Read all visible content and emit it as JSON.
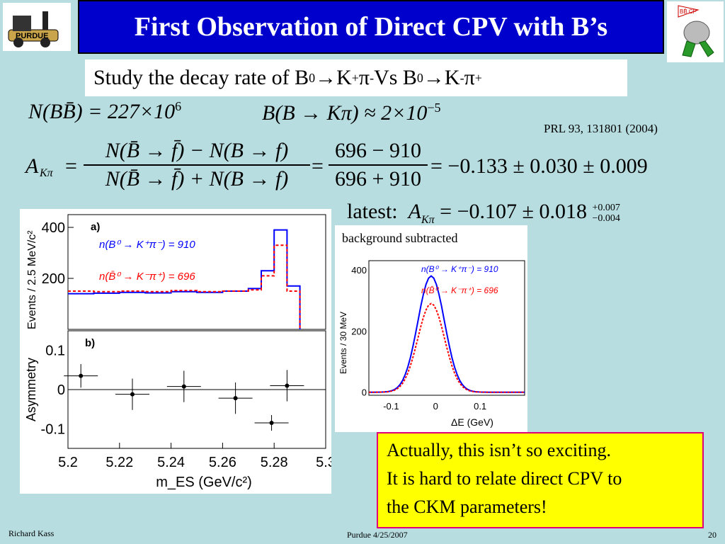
{
  "slide": {
    "title": "First Observation of Direct CPV with B’s",
    "subtitle_prefix": "Study the decay rate of B",
    "subtitle_rest_1": "→K",
    "subtitle_mid": " Vs B",
    "subtitle_rest_2": "→K",
    "sup_0": "0",
    "sup_plus": "+",
    "sup_minus": "-",
    "pi": "π",
    "citation": "PRL 93, 131801 (2004)",
    "eq_nbb": "N(BB̄) = 227×10",
    "eq_nbb_exp": "6",
    "eq_br": "B(B → Kπ) ≈ 2×10",
    "eq_br_exp": "−5",
    "eq_a_lhs": "A",
    "eq_a_sub": "Kπ",
    "eq_a_num": "N(B̄ → f̄) − N(B → f)",
    "eq_a_den": "N(B̄ → f̄) + N(B → f)",
    "eq_a_num2": "696 − 910",
    "eq_a_den2": "696 + 910",
    "eq_a_result": "= −0.133 ± 0.030 ± 0.009",
    "latest_label": "latest:",
    "latest_value": "= −0.107 ± 0.018",
    "latest_up": "+0.007",
    "latest_down": "−0.004",
    "bg_label": "background subtracted",
    "conclusion": [
      "Actually, this isn’t so exciting.",
      "It is hard to relate direct CPV to",
      "the CKM parameters!"
    ],
    "footer_left": "Richard Kass",
    "footer_center": "Purdue 4/25/2007",
    "footer_right": "20",
    "logo_left_text": "PURDUE",
    "logo_right_text": "BB̄ CP"
  },
  "colors": {
    "title_bg": "#0000cc",
    "bg": "#b7dde0",
    "conclusion_bg": "#ffff00",
    "conclusion_border": "#e0007a",
    "red": "#ff0000",
    "blue": "#0000ff"
  },
  "chart_data": [
    {
      "type": "line",
      "panel": "a",
      "panel_label": "a)",
      "xlabel": "",
      "ylabel": "Events / 2.5 MeV/c²",
      "yticks": [
        "200",
        "400"
      ],
      "legend_b": "n(B⁰ → K⁺π⁻) = 910",
      "legend_bbar": "n(B̄⁰ → K⁻π⁺) = 696",
      "x": [
        5.2,
        5.21,
        5.22,
        5.23,
        5.24,
        5.25,
        5.26,
        5.27,
        5.275,
        5.28,
        5.285,
        5.29
      ],
      "series": [
        {
          "name": "B⁰",
          "color": "#0000ff",
          "values": [
            140,
            142,
            145,
            143,
            148,
            145,
            150,
            160,
            230,
            390,
            170,
            0
          ]
        },
        {
          "name": "B̄⁰",
          "color": "#ff0000",
          "values": [
            150,
            148,
            150,
            148,
            152,
            148,
            150,
            155,
            210,
            330,
            150,
            0
          ]
        }
      ],
      "xlim": [
        5.2,
        5.3
      ],
      "ylim": [
        0,
        450
      ]
    },
    {
      "type": "scatter",
      "panel": "b",
      "panel_label": "b)",
      "xlabel": "m_ES (GeV/c²)",
      "ylabel": "Asymmetry",
      "xticks": [
        "5.2",
        "5.22",
        "5.24",
        "5.26",
        "5.28",
        "5.3"
      ],
      "yticks": [
        "0.1",
        "0",
        "-0.1"
      ],
      "points": [
        {
          "x": 5.205,
          "y": 0.035,
          "err": 0.03
        },
        {
          "x": 5.225,
          "y": -0.012,
          "err": 0.04
        },
        {
          "x": 5.245,
          "y": 0.008,
          "err": 0.04
        },
        {
          "x": 5.265,
          "y": -0.022,
          "err": 0.04
        },
        {
          "x": 5.285,
          "y": 0.01,
          "err": 0.04
        },
        {
          "x": 5.279,
          "y": -0.085,
          "err": 0.02
        }
      ],
      "xlim": [
        5.2,
        5.3
      ],
      "ylim": [
        -0.15,
        0.15
      ]
    },
    {
      "type": "line",
      "panel": "c",
      "xlabel": "ΔE (GeV)",
      "ylabel": "Events / 30 MeV",
      "xticks": [
        "-0.1",
        "0",
        "0.1"
      ],
      "yticks": [
        "0",
        "200",
        "400"
      ],
      "legend_b": "n(B⁰ → K⁺π⁻) = 910",
      "legend_bbar": "n(B̄⁰ → K⁻π⁺) = 696",
      "series": [
        {
          "name": "B⁰",
          "color": "#0000ff",
          "peak": 380,
          "mean": -0.01,
          "sigma": 0.03
        },
        {
          "name": "B̄⁰",
          "color": "#ff0000",
          "peak": 290,
          "mean": -0.01,
          "sigma": 0.03
        }
      ],
      "xlim": [
        -0.15,
        0.2
      ],
      "ylim": [
        -10,
        430
      ]
    }
  ]
}
